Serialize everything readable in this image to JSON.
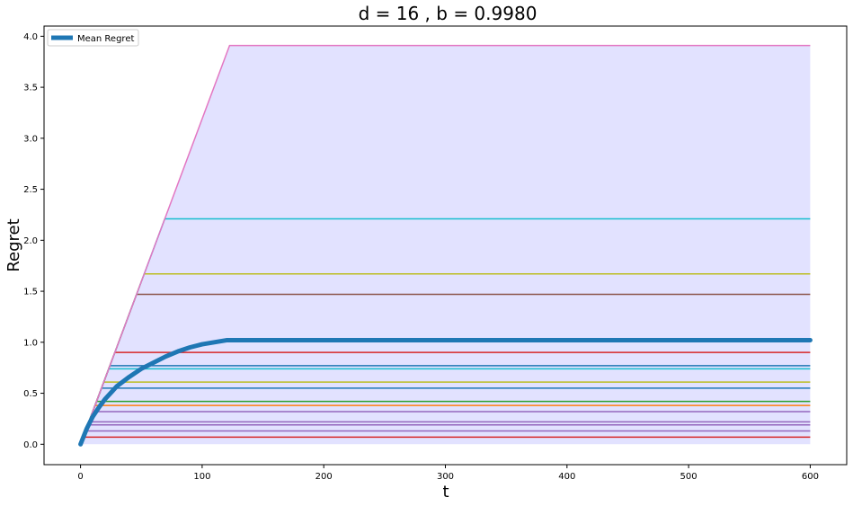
{
  "chart_data": {
    "type": "line",
    "title": "d = 16 , b = 0.9980",
    "xlabel": "t",
    "ylabel": "Regret",
    "xlim": [
      -30,
      630
    ],
    "ylim": [
      -0.2,
      4.1
    ],
    "x_ticks": [
      0,
      100,
      200,
      300,
      400,
      500,
      600
    ],
    "y_ticks": [
      0.0,
      0.5,
      1.0,
      1.5,
      2.0,
      2.5,
      3.0,
      3.5,
      4.0
    ],
    "y_tick_labels": [
      "0.0",
      "0.5",
      "1.0",
      "1.5",
      "2.0",
      "2.5",
      "3.0",
      "3.5",
      "4.0"
    ],
    "grid": false,
    "legend_position": "top-left",
    "slope": 0.0319,
    "fill": {
      "color": "#e2e2ff",
      "lower": 0.0,
      "upper": 3.91
    },
    "mean_series": {
      "name": "Mean Regret",
      "color": "#1f77b4",
      "x": [
        0,
        5,
        10,
        15,
        20,
        30,
        40,
        50,
        60,
        70,
        80,
        90,
        100,
        110,
        120,
        130,
        600
      ],
      "y": [
        0.0,
        0.15,
        0.27,
        0.36,
        0.44,
        0.57,
        0.66,
        0.74,
        0.8,
        0.86,
        0.91,
        0.95,
        0.98,
        1.0,
        1.02,
        1.02,
        1.02
      ]
    },
    "series": [
      {
        "color": "#d62728",
        "plateau": 0.07
      },
      {
        "color": "#9467bd",
        "plateau": 0.13
      },
      {
        "color": "#9467bd",
        "plateau": 0.19
      },
      {
        "color": "#9467bd",
        "plateau": 0.22
      },
      {
        "color": "#9467bd",
        "plateau": 0.32
      },
      {
        "color": "#ff7f0e",
        "plateau": 0.38
      },
      {
        "color": "#2ca02c",
        "plateau": 0.42
      },
      {
        "color": "#1f77b4",
        "plateau": 0.55
      },
      {
        "color": "#bcbd22",
        "plateau": 0.61
      },
      {
        "color": "#17becf",
        "plateau": 0.74
      },
      {
        "color": "#1f77b4",
        "plateau": 0.77
      },
      {
        "color": "#d62728",
        "plateau": 0.9
      },
      {
        "color": "#8c564b",
        "plateau": 1.47
      },
      {
        "color": "#bcbd22",
        "plateau": 1.67
      },
      {
        "color": "#17becf",
        "plateau": 2.21
      },
      {
        "color": "#e377c2",
        "plateau": 3.91
      }
    ]
  }
}
